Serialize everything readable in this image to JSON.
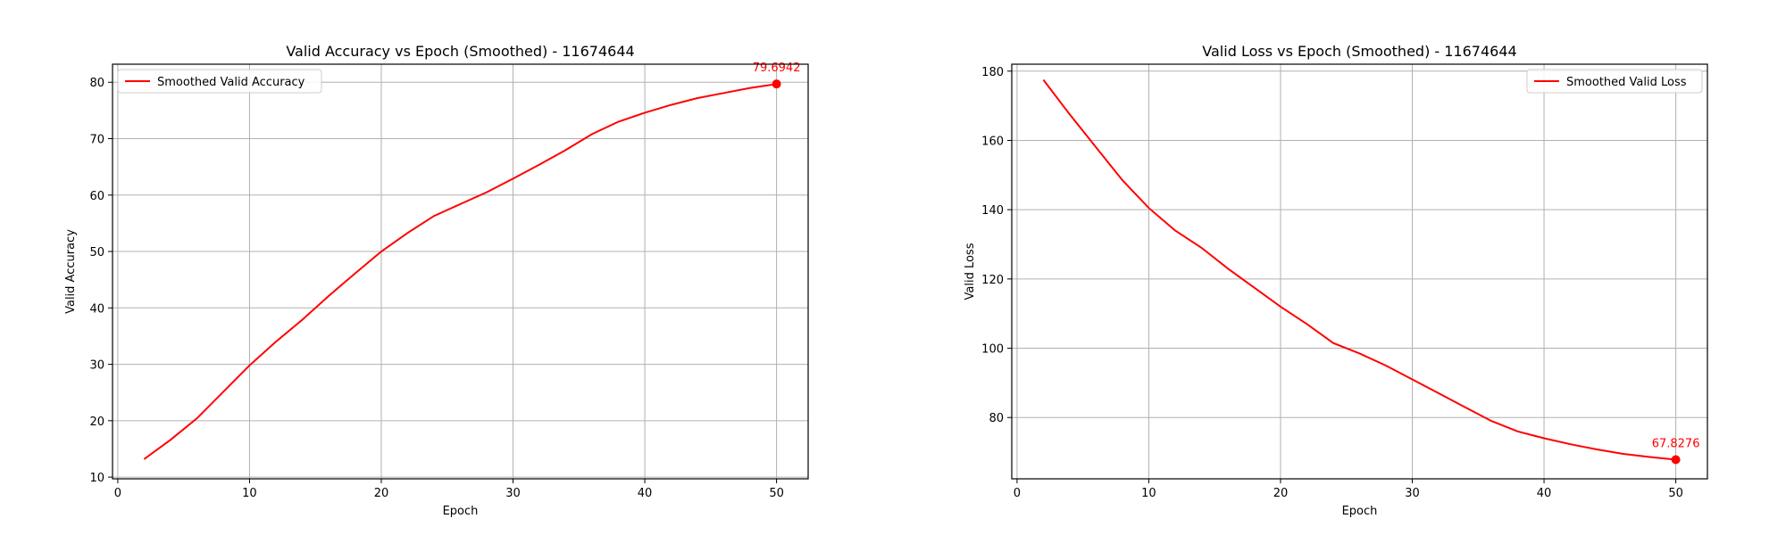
{
  "chart_data": [
    {
      "type": "line",
      "title": "Valid Accuracy vs Epoch (Smoothed) - 11674644",
      "xlabel": "Epoch",
      "ylabel": "Valid Accuracy",
      "xlim": [
        -0.4,
        52.4
      ],
      "ylim": [
        9.7,
        83.2
      ],
      "xticks": [
        0,
        10,
        20,
        30,
        40,
        50
      ],
      "yticks": [
        10,
        20,
        30,
        40,
        50,
        60,
        70,
        80
      ],
      "grid": true,
      "legend_position": "upper-left",
      "line_color": "#ff0000",
      "series": [
        {
          "name": "Smoothed Valid Accuracy",
          "x": [
            2,
            4,
            6,
            8,
            10,
            12,
            14,
            16,
            18,
            20,
            22,
            24,
            26,
            28,
            30,
            32,
            34,
            36,
            38,
            40,
            42,
            44,
            46,
            48,
            50
          ],
          "y": [
            13.2,
            16.6,
            20.4,
            25.1,
            29.8,
            34.0,
            37.9,
            42.1,
            46.1,
            50.0,
            53.3,
            56.3,
            58.4,
            60.5,
            62.9,
            65.4,
            68.0,
            70.8,
            73.0,
            74.6,
            76.0,
            77.2,
            78.1,
            79.0,
            79.6942
          ]
        }
      ],
      "annotation": {
        "x": 50,
        "y": 79.6942,
        "text": "79.6942"
      }
    },
    {
      "type": "line",
      "title": "Valid Loss vs Epoch (Smoothed) - 11674644",
      "xlabel": "Epoch",
      "ylabel": "Valid Loss",
      "xlim": [
        -0.4,
        52.4
      ],
      "ylim": [
        62.3,
        182.0
      ],
      "xticks": [
        0,
        10,
        20,
        30,
        40,
        50
      ],
      "yticks": [
        80,
        100,
        120,
        140,
        160,
        180
      ],
      "grid": true,
      "legend_position": "upper-right",
      "line_color": "#ff0000",
      "series": [
        {
          "name": "Smoothed Valid Loss",
          "x": [
            2,
            4,
            6,
            8,
            10,
            12,
            14,
            16,
            18,
            20,
            22,
            24,
            26,
            28,
            30,
            32,
            34,
            36,
            38,
            40,
            42,
            44,
            46,
            48,
            50
          ],
          "y": [
            177.5,
            167.5,
            158.0,
            148.5,
            140.5,
            134.0,
            129.0,
            123.0,
            117.5,
            112.0,
            107.0,
            101.5,
            98.5,
            95.0,
            91.0,
            87.0,
            83.0,
            79.0,
            76.0,
            74.0,
            72.3,
            70.8,
            69.5,
            68.6,
            67.8276
          ]
        }
      ],
      "annotation": {
        "x": 50,
        "y": 67.8276,
        "text": "67.8276"
      }
    }
  ]
}
